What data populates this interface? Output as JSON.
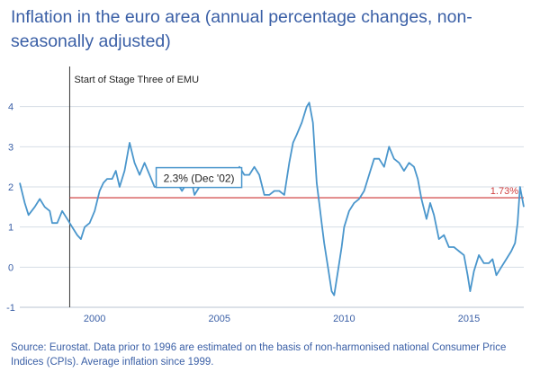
{
  "title": "Inflation in the euro area (annual percentage changes, non-seasonally adjusted)",
  "source": "Source: Eurostat. Data prior to 1996 are estimated on the basis of non-harmonised national Consumer Price Indices (CPIs). Average inflation since 1999.",
  "colors": {
    "title": "#3a5fa6",
    "line": "#4a96cc",
    "average": "#cc3333",
    "grid": "#d6dde6",
    "event_line": "#333333"
  },
  "chart_data": {
    "type": "line",
    "title": "Inflation in the euro area (annual percentage changes, non-seasonally adjusted)",
    "xlabel": "",
    "ylabel": "",
    "xlim": [
      1997.0,
      2017.2
    ],
    "ylim": [
      -1,
      5
    ],
    "x_ticks": [
      2000,
      2005,
      2010,
      2015
    ],
    "y_ticks": [
      -1,
      0,
      1,
      2,
      3,
      4
    ],
    "grid": "horizontal",
    "average": {
      "value": 1.73,
      "label": "1.73%"
    },
    "event": {
      "x": 1999.0,
      "label": "Start of Stage Three of EMU"
    },
    "tooltip": {
      "x": 2002.9,
      "y": 2.3,
      "label": "2.3% (Dec '02)"
    },
    "series": [
      {
        "points": [
          [
            1997.0,
            2.1
          ],
          [
            1997.2,
            1.6
          ],
          [
            1997.35,
            1.3
          ],
          [
            1997.6,
            1.5
          ],
          [
            1997.8,
            1.7
          ],
          [
            1998.0,
            1.5
          ],
          [
            1998.2,
            1.4
          ],
          [
            1998.3,
            1.1
          ],
          [
            1998.5,
            1.1
          ],
          [
            1998.7,
            1.4
          ],
          [
            1998.9,
            1.2
          ],
          [
            1999.1,
            1.0
          ],
          [
            1999.3,
            0.8
          ],
          [
            1999.45,
            0.7
          ],
          [
            1999.6,
            1.0
          ],
          [
            1999.8,
            1.1
          ],
          [
            2000.0,
            1.4
          ],
          [
            2000.2,
            1.9
          ],
          [
            2000.35,
            2.1
          ],
          [
            2000.5,
            2.2
          ],
          [
            2000.7,
            2.2
          ],
          [
            2000.85,
            2.4
          ],
          [
            2001.0,
            2.0
          ],
          [
            2001.2,
            2.4
          ],
          [
            2001.4,
            3.1
          ],
          [
            2001.6,
            2.6
          ],
          [
            2001.8,
            2.3
          ],
          [
            2002.0,
            2.6
          ],
          [
            2002.2,
            2.3
          ],
          [
            2002.4,
            2.0
          ],
          [
            2002.6,
            2.0
          ],
          [
            2002.8,
            2.2
          ],
          [
            2002.9,
            2.3
          ],
          [
            2003.1,
            2.2
          ],
          [
            2003.3,
            2.1
          ],
          [
            2003.5,
            1.9
          ],
          [
            2003.7,
            2.1
          ],
          [
            2003.9,
            2.1
          ],
          [
            2004.0,
            1.8
          ],
          [
            2004.2,
            2.0
          ],
          [
            2004.4,
            2.4
          ],
          [
            2004.6,
            2.3
          ],
          [
            2004.8,
            2.3
          ],
          [
            2005.0,
            2.0
          ],
          [
            2005.2,
            2.1
          ],
          [
            2005.4,
            2.1
          ],
          [
            2005.6,
            2.2
          ],
          [
            2005.8,
            2.5
          ],
          [
            2006.0,
            2.3
          ],
          [
            2006.2,
            2.3
          ],
          [
            2006.4,
            2.5
          ],
          [
            2006.6,
            2.3
          ],
          [
            2006.8,
            1.8
          ],
          [
            2007.0,
            1.8
          ],
          [
            2007.2,
            1.9
          ],
          [
            2007.4,
            1.9
          ],
          [
            2007.6,
            1.8
          ],
          [
            2007.8,
            2.6
          ],
          [
            2007.95,
            3.1
          ],
          [
            2008.1,
            3.3
          ],
          [
            2008.3,
            3.6
          ],
          [
            2008.5,
            4.0
          ],
          [
            2008.6,
            4.1
          ],
          [
            2008.75,
            3.6
          ],
          [
            2008.9,
            2.1
          ],
          [
            2009.0,
            1.6
          ],
          [
            2009.1,
            1.1
          ],
          [
            2009.2,
            0.6
          ],
          [
            2009.35,
            0.0
          ],
          [
            2009.5,
            -0.6
          ],
          [
            2009.6,
            -0.7
          ],
          [
            2009.75,
            -0.1
          ],
          [
            2009.9,
            0.5
          ],
          [
            2010.0,
            1.0
          ],
          [
            2010.2,
            1.4
          ],
          [
            2010.4,
            1.6
          ],
          [
            2010.6,
            1.7
          ],
          [
            2010.8,
            1.9
          ],
          [
            2011.0,
            2.3
          ],
          [
            2011.2,
            2.7
          ],
          [
            2011.4,
            2.7
          ],
          [
            2011.6,
            2.5
          ],
          [
            2011.8,
            3.0
          ],
          [
            2012.0,
            2.7
          ],
          [
            2012.2,
            2.6
          ],
          [
            2012.4,
            2.4
          ],
          [
            2012.6,
            2.6
          ],
          [
            2012.8,
            2.5
          ],
          [
            2012.95,
            2.2
          ],
          [
            2013.1,
            1.7
          ],
          [
            2013.3,
            1.2
          ],
          [
            2013.45,
            1.6
          ],
          [
            2013.6,
            1.3
          ],
          [
            2013.8,
            0.7
          ],
          [
            2014.0,
            0.8
          ],
          [
            2014.2,
            0.5
          ],
          [
            2014.4,
            0.5
          ],
          [
            2014.6,
            0.4
          ],
          [
            2014.8,
            0.3
          ],
          [
            2014.95,
            -0.2
          ],
          [
            2015.05,
            -0.6
          ],
          [
            2015.2,
            -0.1
          ],
          [
            2015.4,
            0.3
          ],
          [
            2015.6,
            0.1
          ],
          [
            2015.8,
            0.1
          ],
          [
            2015.95,
            0.2
          ],
          [
            2016.1,
            -0.2
          ],
          [
            2016.3,
            0.0
          ],
          [
            2016.5,
            0.2
          ],
          [
            2016.7,
            0.4
          ],
          [
            2016.85,
            0.6
          ],
          [
            2016.95,
            1.1
          ],
          [
            2017.05,
            2.0
          ],
          [
            2017.2,
            1.5
          ]
        ]
      }
    ]
  }
}
